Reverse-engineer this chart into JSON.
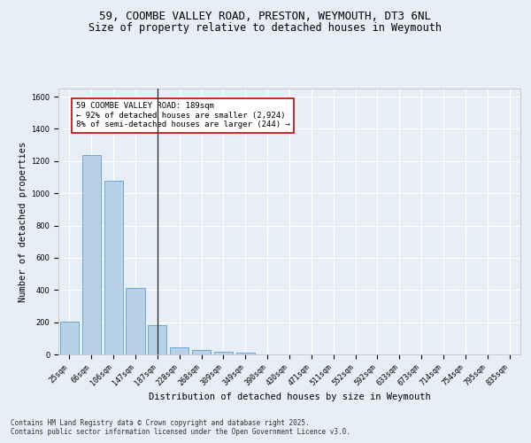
{
  "title_line1": "59, COOMBE VALLEY ROAD, PRESTON, WEYMOUTH, DT3 6NL",
  "title_line2": "Size of property relative to detached houses in Weymouth",
  "xlabel": "Distribution of detached houses by size in Weymouth",
  "ylabel": "Number of detached properties",
  "categories": [
    "25sqm",
    "66sqm",
    "106sqm",
    "147sqm",
    "187sqm",
    "228sqm",
    "268sqm",
    "309sqm",
    "349sqm",
    "390sqm",
    "430sqm",
    "471sqm",
    "511sqm",
    "552sqm",
    "592sqm",
    "633sqm",
    "673sqm",
    "714sqm",
    "754sqm",
    "795sqm",
    "835sqm"
  ],
  "values": [
    205,
    1235,
    1080,
    415,
    180,
    45,
    28,
    18,
    12,
    0,
    0,
    0,
    0,
    0,
    0,
    0,
    0,
    0,
    0,
    0,
    0
  ],
  "bar_color": "#b8d0e8",
  "bar_edge_color": "#5a9fd4",
  "vline_x": 4,
  "vline_color": "#222222",
  "annotation_text": "59 COOMBE VALLEY ROAD: 189sqm\n← 92% of detached houses are smaller (2,924)\n8% of semi-detached houses are larger (244) →",
  "annotation_box_color": "#ffffff",
  "annotation_box_edge_color": "#cc0000",
  "ylim": [
    0,
    1650
  ],
  "yticks": [
    0,
    200,
    400,
    600,
    800,
    1000,
    1200,
    1400,
    1600
  ],
  "background_color": "#e8eef5",
  "plot_bg_color": "#e8eef5",
  "grid_color": "#ffffff",
  "footer_line1": "Contains HM Land Registry data © Crown copyright and database right 2025.",
  "footer_line2": "Contains public sector information licensed under the Open Government Licence v3.0.",
  "title_fontsize": 9,
  "subtitle_fontsize": 8.5,
  "axis_label_fontsize": 7.5,
  "tick_fontsize": 6,
  "annotation_fontsize": 6.5,
  "footer_fontsize": 5.5
}
